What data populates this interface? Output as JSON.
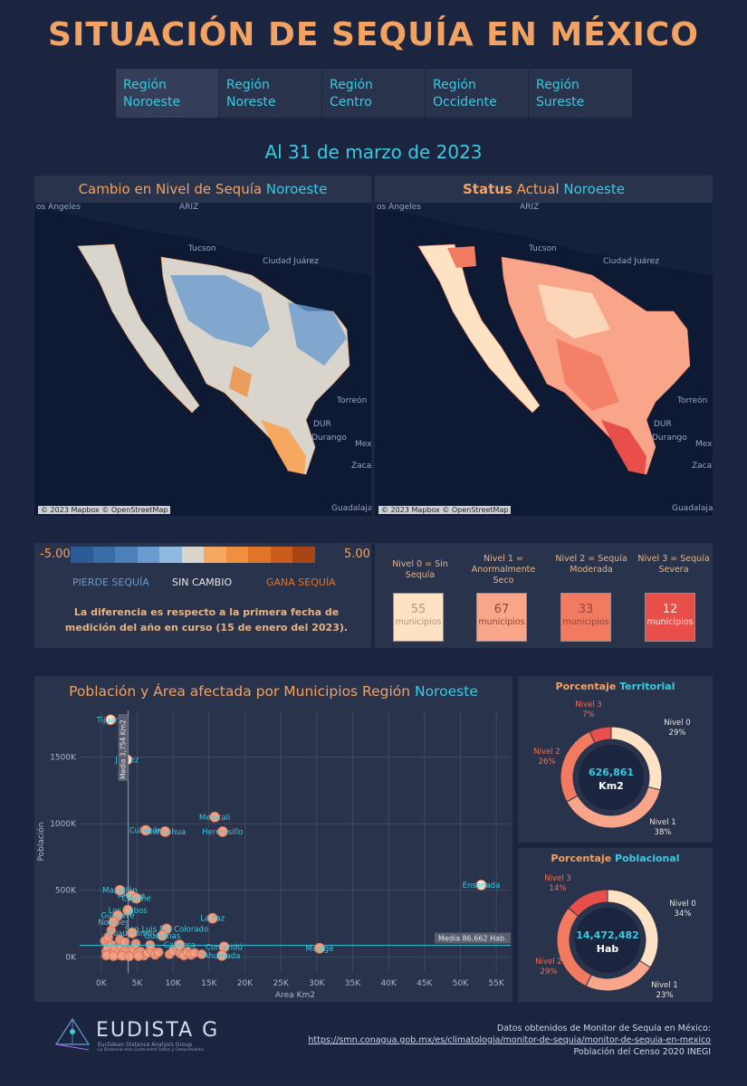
{
  "header": {
    "title": "SITUACIÓN DE SEQUÍA EN MÉXICO"
  },
  "tabs": [
    {
      "line1": "Región",
      "line2": "Noroeste"
    },
    {
      "line1": "Región",
      "line2": "Noreste"
    },
    {
      "line1": "Región Centro",
      "line2": ""
    },
    {
      "line1": "Región",
      "line2": "Occidente"
    },
    {
      "line1": "Región",
      "line2": "Sureste"
    }
  ],
  "date_label": "Al 31 de marzo de 2023",
  "map_change": {
    "title_a": "Cambio en Nivel de Sequía ",
    "title_b": "Noroeste",
    "attribution": "© 2023 Mapbox © OpenStreetMap",
    "places": [
      "os Angeles",
      "ARIZ",
      "Tucson",
      "Ciudad Juárez",
      "Torreón",
      "DUR",
      "Durango",
      "Mex",
      "Zacat",
      "Guadalajar"
    ]
  },
  "map_status": {
    "title_a": "Status",
    "title_b": " Actual ",
    "title_c": "Noroeste",
    "attribution": "© 2023 Mapbox © OpenStreetMap",
    "places": [
      "os Angeles",
      "ARIZ",
      "Tucson",
      "Ciudad Juárez",
      "Torreón",
      "DUR",
      "Durango",
      "Mex",
      "Zacat",
      "Guadalajar"
    ]
  },
  "change_legend": {
    "min": "-5.00",
    "max": "5.00",
    "loses": "PIERDE SEQUÍA",
    "none": "SIN CAMBIO",
    "gains": "GANA SEQUÍA",
    "note": "La diferencia es respecto a la primera fecha de medición del año en curso (15 de enero del 2023).",
    "colors": [
      "#2b5c98",
      "#3a6ca8",
      "#4d80b8",
      "#6a9bcf",
      "#8fb9df",
      "#d9d4cc",
      "#f6a860",
      "#ef8f3f",
      "#e07428",
      "#c95d1e",
      "#a84516"
    ]
  },
  "levels": [
    {
      "head1": "Nivel 0 = Sin Sequía",
      "head2": "",
      "count": "55",
      "unit": "municipios",
      "color": "#fde2c4"
    },
    {
      "head1": "Nivel 1 =",
      "head2": "Anormalmente Seco",
      "count": "67",
      "unit": "municipios",
      "color": "#f9a58a"
    },
    {
      "head1": "Nivel 2 = Sequía",
      "head2": "Moderada",
      "count": "33",
      "unit": "municipios",
      "color": "#f27a60"
    },
    {
      "head1": "Nivel 3 = Sequía",
      "head2": "Severa",
      "count": "12",
      "unit": "municipios",
      "color": "#e84f4a"
    }
  ],
  "scatter": {
    "title_a": "Población y Área afectada por Municipios Región ",
    "title_b": "Noroeste",
    "xlabel": "Area Km2",
    "ylabel": "Población",
    "mean_x_label": "Media 3,754 Km2",
    "mean_y_label": "Media 86,662 Hab.",
    "x_ticks": [
      "0K",
      "5K",
      "10K",
      "15K",
      "20K",
      "25K",
      "30K",
      "35K",
      "40K",
      "45K",
      "50K",
      "55K"
    ],
    "y_ticks": [
      "0K",
      "500K",
      "1000K",
      "1500K"
    ]
  },
  "chart_data": {
    "type": "scatter",
    "xlabel": "Area Km2",
    "ylabel": "Población",
    "xlim": [
      -3000,
      57000
    ],
    "ylim": [
      -120000,
      1850000
    ],
    "mean_x": 3754,
    "mean_y": 86662,
    "labeled_points": [
      {
        "name": "Tijuana",
        "x": 1300,
        "y": 1780000
      },
      {
        "name": "Juárez",
        "x": 3600,
        "y": 1480000
      },
      {
        "name": "Mexicali",
        "x": 15800,
        "y": 1050000
      },
      {
        "name": "Hermosillo",
        "x": 16900,
        "y": 940000
      },
      {
        "name": "Culiacán",
        "x": 6200,
        "y": 950000
      },
      {
        "name": "Chihuahua",
        "x": 8900,
        "y": 940000
      },
      {
        "name": "Ensenada",
        "x": 52900,
        "y": 540000
      },
      {
        "name": "Mazatlán",
        "x": 2600,
        "y": 500000
      },
      {
        "name": "Ahome",
        "x": 4200,
        "y": 460000
      },
      {
        "name": "Cajeme",
        "x": 4900,
        "y": 440000
      },
      {
        "name": "Los Cabos",
        "x": 3700,
        "y": 350000
      },
      {
        "name": "Guasave",
        "x": 2300,
        "y": 310000
      },
      {
        "name": "Nogales",
        "x": 1700,
        "y": 260000
      },
      {
        "name": "La Paz",
        "x": 15500,
        "y": 290000
      },
      {
        "name": "San Luis Río Colorado",
        "x": 9100,
        "y": 210000
      },
      {
        "name": "Guaymas",
        "x": 8500,
        "y": 160000
      },
      {
        "name": "Cuauhtémoc",
        "x": 4300,
        "y": 180000
      },
      {
        "name": "Caborca",
        "x": 10900,
        "y": 90000
      },
      {
        "name": "Comondú",
        "x": 17100,
        "y": 75000
      },
      {
        "name": "Ahumada",
        "x": 16800,
        "y": 10000
      },
      {
        "name": "Mulegé",
        "x": 30400,
        "y": 65000
      }
    ],
    "small_points": [
      [
        500,
        120000
      ],
      [
        700,
        40000
      ],
      [
        900,
        70000
      ],
      [
        1200,
        20000
      ],
      [
        1500,
        90000
      ],
      [
        1800,
        30000
      ],
      [
        2000,
        60000
      ],
      [
        2200,
        15000
      ],
      [
        2500,
        45000
      ],
      [
        2800,
        80000
      ],
      [
        3000,
        25000
      ],
      [
        3200,
        10000
      ],
      [
        3500,
        55000
      ],
      [
        3800,
        35000
      ],
      [
        4000,
        15000
      ],
      [
        4500,
        60000
      ],
      [
        5000,
        20000
      ],
      [
        5500,
        40000
      ],
      [
        6000,
        10000
      ],
      [
        6500,
        30000
      ],
      [
        7000,
        50000
      ],
      [
        7500,
        15000
      ],
      [
        8000,
        35000
      ],
      [
        9500,
        20000
      ],
      [
        10000,
        45000
      ],
      [
        11000,
        25000
      ],
      [
        11500,
        10000
      ],
      [
        12000,
        40000
      ],
      [
        12500,
        15000
      ],
      [
        13000,
        30000
      ],
      [
        14000,
        20000
      ],
      [
        1000,
        150000
      ],
      [
        1400,
        200000
      ],
      [
        2600,
        130000
      ],
      [
        3300,
        110000
      ],
      [
        4800,
        100000
      ],
      [
        6800,
        90000
      ],
      [
        700,
        10000
      ],
      [
        1700,
        5000
      ],
      [
        2900,
        8000
      ],
      [
        3900,
        3000
      ],
      [
        5200,
        5000
      ]
    ]
  },
  "donut_territorial": {
    "title_a": "Porcentaje ",
    "title_b": "Territorial",
    "center_value": "626,861",
    "center_unit": "Km2",
    "labels": [
      {
        "name": "Nivel 0",
        "pct": "29%"
      },
      {
        "name": "Nivel 1",
        "pct": "38%"
      },
      {
        "name": "Nivel 2",
        "pct": "26%"
      },
      {
        "name": "Nivel 3",
        "pct": "7%"
      }
    ],
    "values": [
      29,
      38,
      26,
      7
    ]
  },
  "donut_poblacional": {
    "title_a": "Porcentaje ",
    "title_b": "Poblacional",
    "center_value": "14,472,482",
    "center_unit": "Hab",
    "labels": [
      {
        "name": "Nivel 0",
        "pct": "34%"
      },
      {
        "name": "Nivel 1",
        "pct": "23%"
      },
      {
        "name": "Nivel 2",
        "pct": "29%"
      },
      {
        "name": "Nivel 3",
        "pct": "14%"
      }
    ],
    "values": [
      34,
      23,
      29,
      14
    ]
  },
  "footer": {
    "logo": "EUDISTA G",
    "logo_sub": "Euclidean Distance Analysis Group",
    "logo_tag": "La Distancia más Corta entre Datos y Conocimiento",
    "source": "Datos obtenidos de Monitor de Sequía en México:",
    "url": "https://smn.conagua.gob.mx/es/climatologia/monitor-de-sequia/monitor-de-sequia-en-mexico",
    "census": "Población del Censo 2020 INEGI"
  }
}
